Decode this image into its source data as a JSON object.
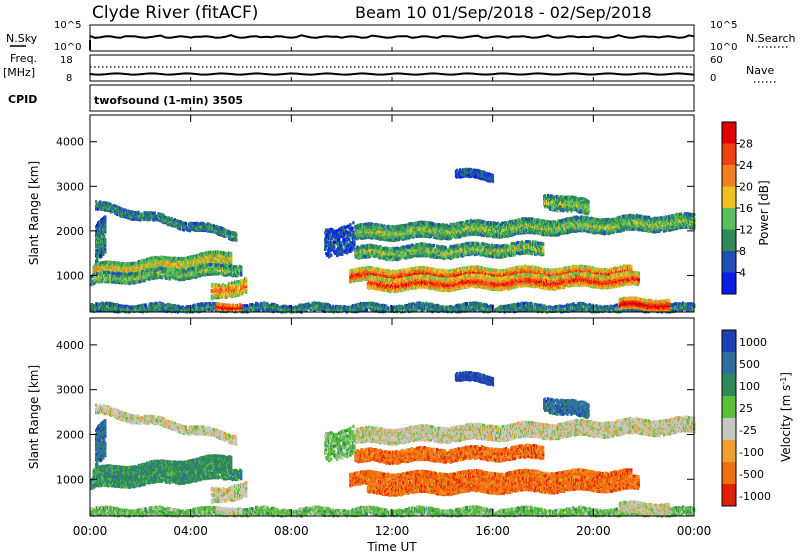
{
  "header": {
    "title": "Clyde River (fitACF)",
    "beam_range": "Beam 10  01/Sep/2018 - 02/Sep/2018"
  },
  "status_panels": {
    "nsky_label": "N.Sky",
    "nsearch_label": "N.Search",
    "freq_label": "Freq.",
    "freq_unit": "[MHz]",
    "nave_label": "Nave",
    "cpid_label": "CPID",
    "left_ticks_top": [
      "10^5",
      "10^0"
    ],
    "right_ticks_top": [
      "10^5",
      "10^0"
    ],
    "left_ticks_freq": [
      "18",
      "8"
    ],
    "right_ticks_nave": [
      "60",
      "0"
    ],
    "cpid_text": "twofsound (1-min) 3505"
  },
  "chart_data": [
    {
      "type": "heatmap",
      "panel": "power",
      "xlabel": "Time UT",
      "ylabel": "Slant Range [km]",
      "x_ticks": [
        "00:00",
        "04:00",
        "08:00",
        "12:00",
        "16:00",
        "20:00",
        "00:00"
      ],
      "y_ticks": [
        "1000",
        "2000",
        "3000",
        "4000"
      ],
      "ylim": [
        180,
        4600
      ],
      "xlim_hours": [
        0,
        24
      ],
      "colorbar_label": "Power [dB]",
      "colorbar_ticks": [
        "4",
        "8",
        "12",
        "16",
        "20",
        "24",
        "28"
      ],
      "colorbar_range": [
        0,
        32
      ],
      "colors": [
        "#0a1ee6",
        "#1f4fb5",
        "#2e8b57",
        "#5cbf5c",
        "#f0c020",
        "#f08020",
        "#f04010",
        "#e00000"
      ]
    },
    {
      "type": "heatmap",
      "panel": "velocity",
      "xlabel": "Time UT",
      "ylabel": "Slant Range [km]",
      "x_ticks": [
        "00:00",
        "04:00",
        "08:00",
        "12:00",
        "16:00",
        "20:00",
        "00:00"
      ],
      "y_ticks": [
        "1000",
        "2000",
        "3000",
        "4000"
      ],
      "ylim": [
        180,
        4600
      ],
      "xlim_hours": [
        0,
        24
      ],
      "colorbar_label": "Velocity [m s^-1]",
      "colorbar_ticks": [
        "1000",
        "500",
        "100",
        "25",
        "-25",
        "-100",
        "-500",
        "-1000"
      ],
      "colors": [
        "#1f3fb5",
        "#2e6fa0",
        "#2e8b57",
        "#5cbf3c",
        "#c8c8c0",
        "#f0a030",
        "#f07010",
        "#e02000"
      ]
    }
  ]
}
